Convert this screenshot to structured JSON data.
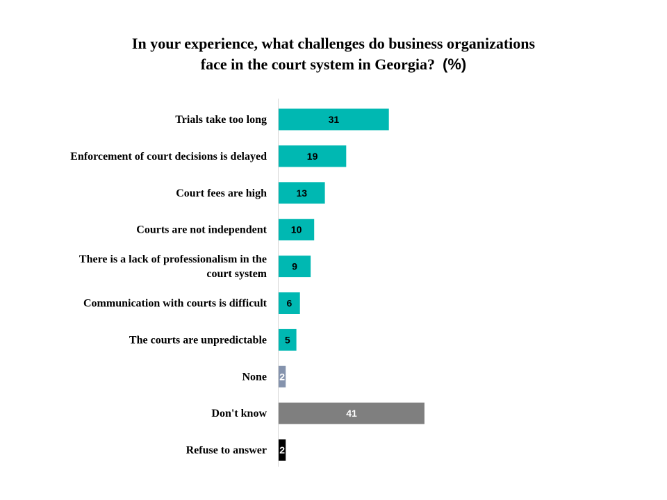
{
  "chart_data": {
    "type": "bar",
    "orientation": "horizontal",
    "title_line1": "In your experience, what challenges do business organizations",
    "title_line2": "face in the court system in Georgia?",
    "title_unit": "(%)",
    "categories": [
      "Trials take too long",
      "Enforcement of court decisions is delayed",
      "Court fees are high",
      "Courts are not independent",
      "There is a lack of professionalism in the court system",
      "Communication with courts is difficult",
      "The courts are unpredictable",
      "None",
      "Don't know",
      "Refuse to answer"
    ],
    "values": [
      31,
      19,
      13,
      10,
      9,
      6,
      5,
      2,
      41,
      2
    ],
    "data_labels": [
      "31",
      "19",
      "13",
      "10",
      "9",
      "6",
      "5",
      "2",
      "41",
      "2"
    ],
    "bar_colors": [
      "#00b8b2",
      "#00b8b2",
      "#00b8b2",
      "#00b8b2",
      "#00b8b2",
      "#00b8b2",
      "#00b8b2",
      "#8593ad",
      "#7f7f7f",
      "#000000"
    ],
    "label_colors": [
      "#000000",
      "#000000",
      "#000000",
      "#000000",
      "#000000",
      "#000000",
      "#000000",
      "#ffffff",
      "#ffffff",
      "#ffffff"
    ],
    "xlim": [
      0,
      100
    ],
    "grid": false,
    "legend": "none"
  }
}
